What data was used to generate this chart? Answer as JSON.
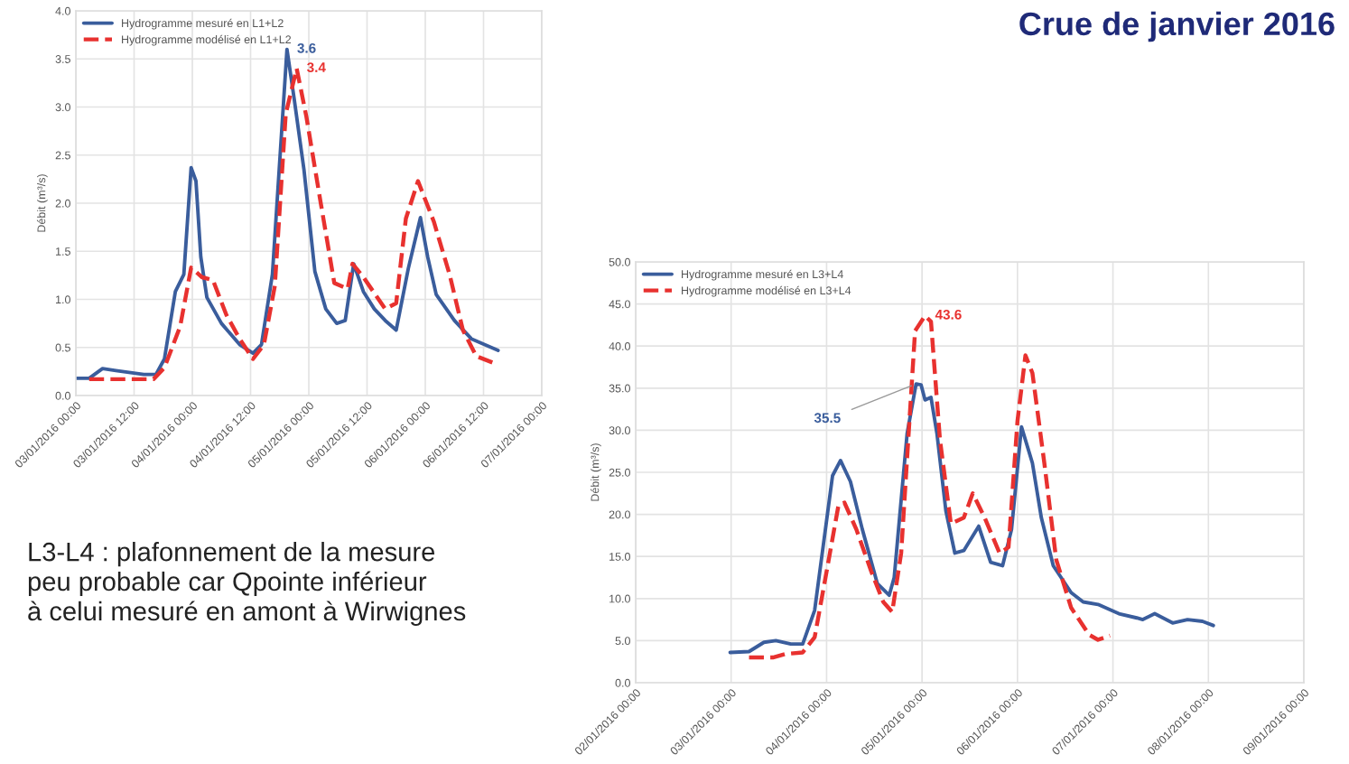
{
  "chart_data": [
    {
      "type": "line",
      "ylabel": "Débit (m³/s)",
      "grid": true,
      "legend": "top left",
      "ylim": [
        0,
        4
      ],
      "yticks": [
        {
          "value": 0,
          "label": "0.0"
        },
        {
          "value": 0.5,
          "label": "0.5"
        },
        {
          "value": 1,
          "label": "1.0"
        },
        {
          "value": 1.5,
          "label": "1.5"
        },
        {
          "value": 2,
          "label": "2.0"
        },
        {
          "value": 2.5,
          "label": "2.5"
        },
        {
          "value": 3,
          "label": "3.0"
        },
        {
          "value": 3.5,
          "label": "3.5"
        },
        {
          "value": 4,
          "label": "4.0"
        }
      ],
      "xlim": [
        "2016-01-03T00:00",
        "2016-01-07T00:00"
      ],
      "xticks": [
        {
          "value": "2016-01-03T00:00",
          "label": "03/01/2016 00:00"
        },
        {
          "value": "2016-01-03T12:00",
          "label": "03/01/2016 12:00"
        },
        {
          "value": "2016-01-04T00:00",
          "label": "04/01/2016 00:00"
        },
        {
          "value": "2016-01-04T12:00",
          "label": "04/01/2016 12:00"
        },
        {
          "value": "2016-01-05T00:00",
          "label": "05/01/2016 00:00"
        },
        {
          "value": "2016-01-05T12:00",
          "label": "05/01/2016 12:00"
        },
        {
          "value": "2016-01-06T00:00",
          "label": "06/01/2016 00:00"
        },
        {
          "value": "2016-01-06T12:00",
          "label": "06/01/2016 12:00"
        },
        {
          "value": "2016-01-07T00:00",
          "label": "07/01/2016 00:00"
        }
      ],
      "series": [
        {
          "name": "Hydrogramme mesuré en L1+L2",
          "color": "#3a5d9c",
          "line_style": "solid",
          "x": [
            "2016-01-03T00:00",
            "2016-01-03T02:45",
            "2016-01-03T05:30",
            "2016-01-03T08:15",
            "2016-01-03T14:00",
            "2016-01-03T16:30",
            "2016-01-03T18:15",
            "2016-01-03T20:30",
            "2016-01-03T22:15",
            "2016-01-03T23:45",
            "2016-01-04T00:45",
            "2016-01-04T01:45",
            "2016-01-04T03:00",
            "2016-01-04T06:00",
            "2016-01-04T09:45",
            "2016-01-04T12:30",
            "2016-01-04T14:15",
            "2016-01-04T16:30",
            "2016-01-04T19:30",
            "2016-01-04T21:00",
            "2016-01-04T23:00",
            "2016-01-05T01:15",
            "2016-01-05T03:30",
            "2016-01-05T05:45",
            "2016-01-05T07:30",
            "2016-01-05T09:15",
            "2016-01-05T11:15",
            "2016-01-05T13:30",
            "2016-01-05T15:45",
            "2016-01-05T18:00",
            "2016-01-05T20:30",
            "2016-01-05T23:00",
            "2016-01-06T00:30",
            "2016-01-06T02:15",
            "2016-01-06T06:00",
            "2016-01-06T09:30",
            "2016-01-06T15:00"
          ],
          "values": [
            0.18,
            0.18,
            0.28,
            0.26,
            0.22,
            0.22,
            0.38,
            1.08,
            1.26,
            2.37,
            2.23,
            1.44,
            1.02,
            0.75,
            0.53,
            0.44,
            0.53,
            1.26,
            3.6,
            3.08,
            2.35,
            1.29,
            0.9,
            0.75,
            0.78,
            1.37,
            1.08,
            0.9,
            0.78,
            0.68,
            1.32,
            1.85,
            1.44,
            1.05,
            0.78,
            0.59,
            0.47
          ],
          "value_labels": [
            null,
            null,
            null,
            null,
            null,
            null,
            null,
            null,
            null,
            null,
            null,
            null,
            null,
            null,
            null,
            null,
            null,
            null,
            "3.6",
            null,
            null,
            null,
            null,
            null,
            null,
            null,
            null,
            null,
            null,
            null,
            null,
            null,
            null,
            null,
            null,
            null,
            null
          ]
        },
        {
          "name": "Hydrogramme modélisé en L1+L2",
          "color": "#e8312f",
          "line_style": "dashed",
          "x": [
            "2016-01-03T02:45",
            "2016-01-03T16:00",
            "2016-01-03T18:15",
            "2016-01-03T21:30",
            "2016-01-03T23:45",
            "2016-01-04T02:00",
            "2016-01-04T04:15",
            "2016-01-04T07:00",
            "2016-01-04T09:45",
            "2016-01-04T12:30",
            "2016-01-04T14:45",
            "2016-01-04T17:00",
            "2016-01-04T19:15",
            "2016-01-04T21:30",
            "2016-01-04T23:30",
            "2016-01-05T02:30",
            "2016-01-05T05:15",
            "2016-01-05T08:00",
            "2016-01-05T09:00",
            "2016-01-05T11:15",
            "2016-01-05T15:45",
            "2016-01-05T18:00",
            "2016-01-05T20:00",
            "2016-01-05T22:30",
            "2016-01-06T01:45",
            "2016-01-06T05:00",
            "2016-01-06T07:45",
            "2016-01-06T10:30",
            "2016-01-06T15:00"
          ],
          "values": [
            0.17,
            0.17,
            0.29,
            0.72,
            1.33,
            1.23,
            1.2,
            0.84,
            0.59,
            0.38,
            0.53,
            1.14,
            2.93,
            3.4,
            2.9,
            1.99,
            1.17,
            1.11,
            1.37,
            1.23,
            0.9,
            0.96,
            1.84,
            2.23,
            1.81,
            1.26,
            0.68,
            0.41,
            0.32
          ],
          "value_labels": [
            null,
            null,
            null,
            null,
            null,
            null,
            null,
            null,
            null,
            null,
            null,
            null,
            null,
            "3.4",
            null,
            null,
            null,
            null,
            null,
            null,
            null,
            null,
            null,
            null,
            null,
            null,
            null,
            null,
            null
          ]
        }
      ]
    },
    {
      "type": "line",
      "title": "Crue de janvier 2016",
      "ylabel": "Débit (m³/s)",
      "grid": true,
      "legend": "top left",
      "annotations": [
        "L3-L4 : plafonnement de la mesure\npeu probable car Qpointe inférieur\nà celui mesuré en amont à Wirwignes"
      ],
      "ylim": [
        0,
        50
      ],
      "yticks": [
        {
          "value": 0,
          "label": "0.0"
        },
        {
          "value": 5,
          "label": "5.0"
        },
        {
          "value": 10,
          "label": "10.0"
        },
        {
          "value": 15,
          "label": "15.0"
        },
        {
          "value": 20,
          "label": "20.0"
        },
        {
          "value": 25,
          "label": "25.0"
        },
        {
          "value": 30,
          "label": "30.0"
        },
        {
          "value": 35,
          "label": "35.0"
        },
        {
          "value": 40,
          "label": "40.0"
        },
        {
          "value": 45,
          "label": "45.0"
        },
        {
          "value": 50,
          "label": "50.0"
        }
      ],
      "xlim": [
        "2016-01-02T00:00",
        "2016-01-09T00:00"
      ],
      "xticks": [
        {
          "value": "2016-01-02T00:00",
          "label": "02/01/2016 00:00"
        },
        {
          "value": "2016-01-03T00:00",
          "label": "03/01/2016 00:00"
        },
        {
          "value": "2016-01-04T00:00",
          "label": "04/01/2016 00:00"
        },
        {
          "value": "2016-01-05T00:00",
          "label": "05/01/2016 00:00"
        },
        {
          "value": "2016-01-06T00:00",
          "label": "06/01/2016 00:00"
        },
        {
          "value": "2016-01-07T00:00",
          "label": "07/01/2016 00:00"
        },
        {
          "value": "2016-01-08T00:00",
          "label": "08/01/2016 00:00"
        },
        {
          "value": "2016-01-09T00:00",
          "label": "09/01/2016 00:00"
        }
      ],
      "series": [
        {
          "name": "Hydrogramme mesuré en L3+L4",
          "color": "#3a5d9c",
          "line_style": "solid",
          "x": [
            "2016-01-02T23:45",
            "2016-01-03T04:30",
            "2016-01-03T08:15",
            "2016-01-03T11:15",
            "2016-01-03T15:00",
            "2016-01-03T18:00",
            "2016-01-03T21:00",
            "2016-01-04T01:30",
            "2016-01-04T03:30",
            "2016-01-04T06:00",
            "2016-01-04T09:00",
            "2016-01-04T12:45",
            "2016-01-04T15:45",
            "2016-01-04T17:00",
            "2016-01-04T20:15",
            "2016-01-04T22:30",
            "2016-01-04T23:45",
            "2016-01-05T00:45",
            "2016-01-05T02:15",
            "2016-01-05T03:45",
            "2016-01-05T06:00",
            "2016-01-05T08:15",
            "2016-01-05T10:30",
            "2016-01-05T14:15",
            "2016-01-05T17:15",
            "2016-01-05T20:15",
            "2016-01-05T22:30",
            "2016-01-06T01:00",
            "2016-01-06T03:45",
            "2016-01-06T06:00",
            "2016-01-06T09:00",
            "2016-01-06T13:30",
            "2016-01-06T16:30",
            "2016-01-06T20:15",
            "2016-01-07T01:30",
            "2016-01-07T06:00",
            "2016-01-07T07:30",
            "2016-01-07T10:30",
            "2016-01-07T15:00",
            "2016-01-07T18:45",
            "2016-01-07T22:30",
            "2016-01-08T01:15"
          ],
          "values": [
            3.6,
            3.7,
            4.8,
            5.0,
            4.6,
            4.6,
            8.6,
            24.6,
            26.4,
            23.9,
            18.2,
            11.8,
            10.4,
            12.5,
            29.6,
            35.5,
            35.4,
            33.6,
            33.9,
            29.6,
            20.4,
            15.4,
            15.7,
            18.6,
            14.3,
            13.9,
            18.2,
            30.4,
            26.1,
            19.6,
            13.9,
            10.7,
            9.6,
            9.3,
            8.2,
            7.7,
            7.5,
            8.2,
            7.1,
            7.5,
            7.3,
            6.8
          ],
          "value_labels": [
            null,
            null,
            null,
            null,
            null,
            null,
            null,
            null,
            null,
            null,
            null,
            null,
            null,
            null,
            null,
            "35.5",
            null,
            null,
            null,
            null,
            null,
            null,
            null,
            null,
            null,
            null,
            null,
            null,
            null,
            null,
            null,
            null,
            null,
            null,
            null,
            null,
            null,
            null,
            null,
            null,
            null,
            null
          ]
        },
        {
          "name": "Hydrogramme modélisé en L3+L4",
          "color": "#e8312f",
          "line_style": "dashed",
          "x": [
            "2016-01-03T04:30",
            "2016-01-03T10:30",
            "2016-01-03T13:30",
            "2016-01-03T18:00",
            "2016-01-03T21:00",
            "2016-01-04T00:00",
            "2016-01-04T03:00",
            "2016-01-04T04:30",
            "2016-01-04T07:30",
            "2016-01-04T11:15",
            "2016-01-04T14:15",
            "2016-01-04T16:30",
            "2016-01-04T18:45",
            "2016-01-04T22:15",
            "2016-01-05T00:45",
            "2016-01-05T02:15",
            "2016-01-05T04:30",
            "2016-01-05T07:15",
            "2016-01-05T10:30",
            "2016-01-05T12:45",
            "2016-01-05T15:45",
            "2016-01-05T19:30",
            "2016-01-05T21:45",
            "2016-01-06T00:00",
            "2016-01-06T02:00",
            "2016-01-06T03:45",
            "2016-01-06T06:45",
            "2016-01-06T09:45",
            "2016-01-06T13:30",
            "2016-01-06T18:00",
            "2016-01-06T20:15",
            "2016-01-06T23:15"
          ],
          "values": [
            3.0,
            3.0,
            3.4,
            3.6,
            5.4,
            13.2,
            21.1,
            21.4,
            18.2,
            13.2,
            9.6,
            8.4,
            15.4,
            41.8,
            43.6,
            42.9,
            28.9,
            18.9,
            19.6,
            22.5,
            19.6,
            15.4,
            16.1,
            31.1,
            38.9,
            36.8,
            26.1,
            14.6,
            8.9,
            5.7,
            5.1,
            5.6
          ],
          "value_labels": [
            null,
            null,
            null,
            null,
            null,
            null,
            null,
            null,
            null,
            null,
            null,
            null,
            null,
            null,
            "43.6",
            null,
            null,
            null,
            null,
            null,
            null,
            null,
            null,
            null,
            null,
            null,
            null,
            null,
            null,
            null,
            null,
            null
          ]
        }
      ]
    }
  ]
}
